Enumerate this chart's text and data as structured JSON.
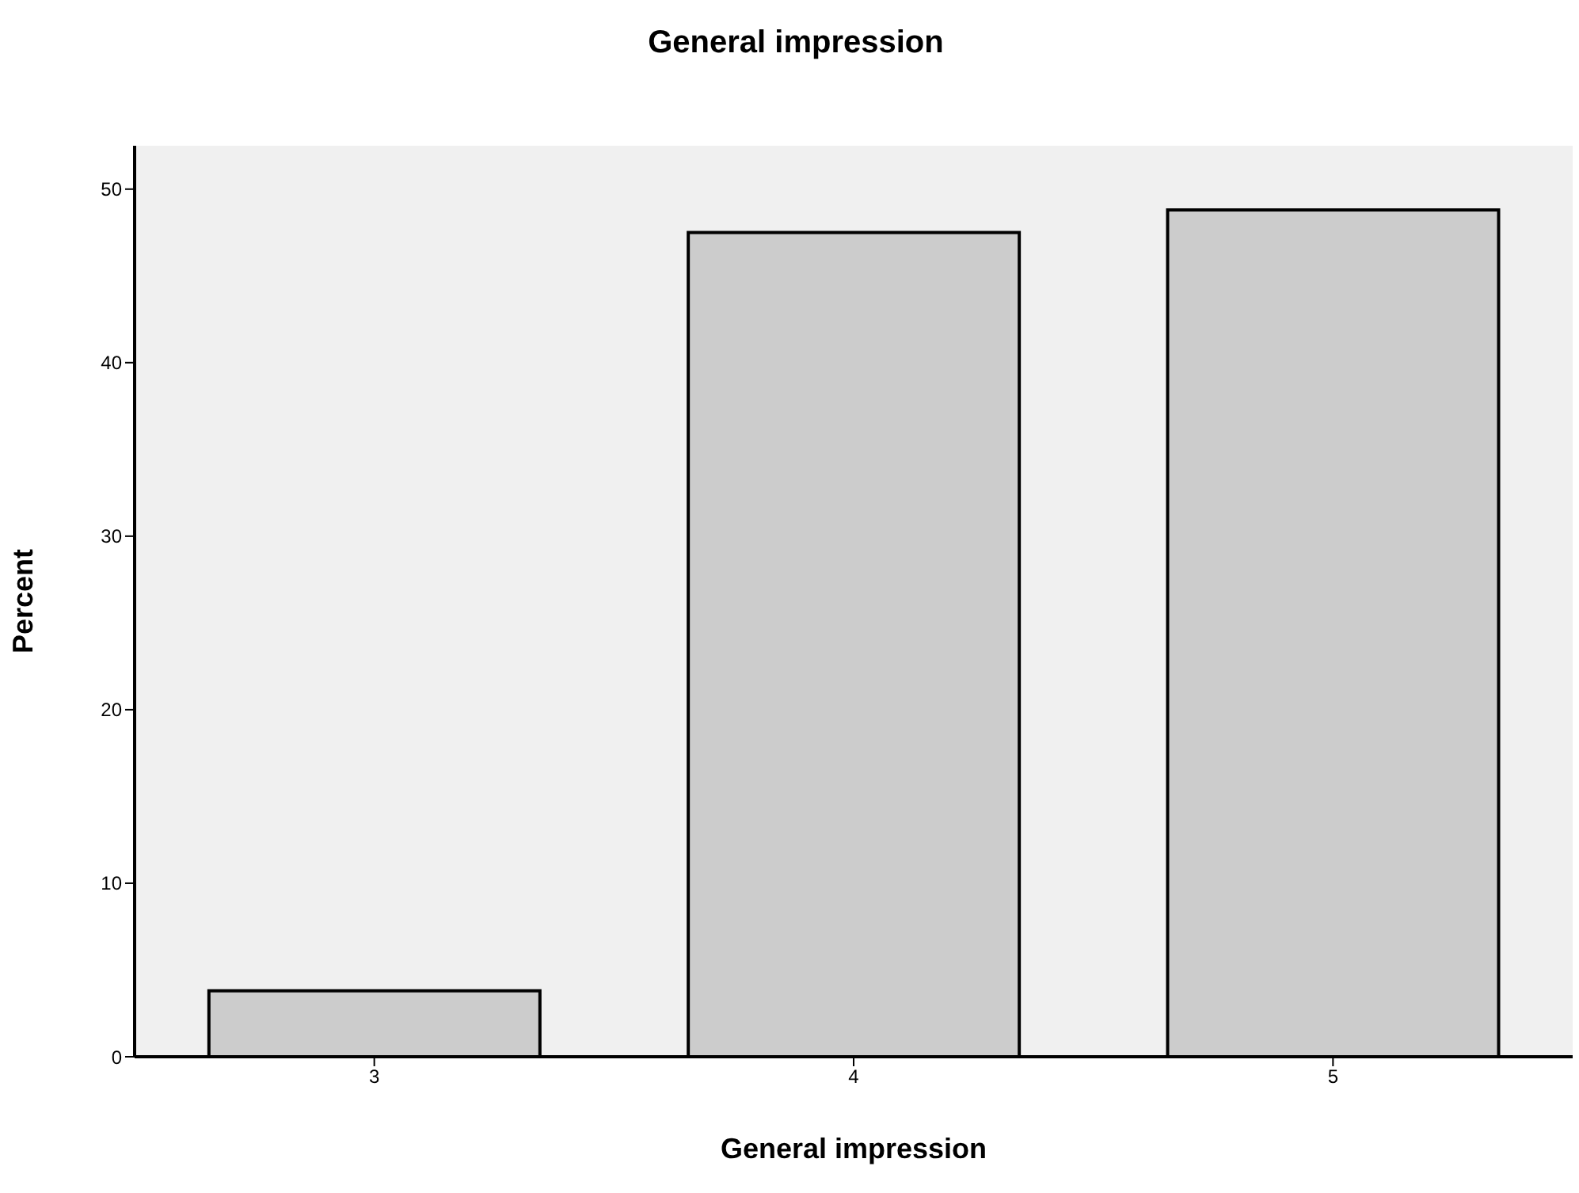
{
  "chart_data": {
    "type": "bar",
    "title": "General impression",
    "xlabel": "General impression",
    "ylabel": "Percent",
    "categories": [
      "3",
      "4",
      "5"
    ],
    "values": [
      3.8,
      47.5,
      48.8
    ],
    "color": "#cccccc",
    "ylim": [
      0,
      52.5
    ],
    "yticks": [
      0,
      10,
      20,
      30,
      40,
      50
    ],
    "grid": false
  }
}
